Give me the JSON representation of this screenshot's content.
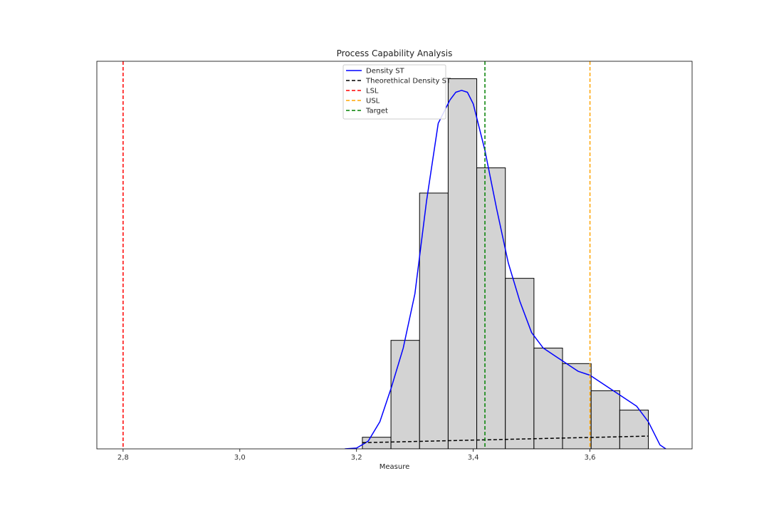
{
  "chart_data": {
    "type": "bar",
    "title": "Process Capability Analysis",
    "xlabel": "Measure",
    "ylabel": "",
    "xlim": [
      2.755,
      3.775
    ],
    "ylim": [
      0,
      1.0
    ],
    "xticks": [
      2.8,
      3.0,
      3.2,
      3.4,
      3.6
    ],
    "xtick_labels": [
      "2,8",
      "3,0",
      "3,2",
      "3,4",
      "3,6"
    ],
    "histogram": {
      "bin_edges": [
        3.21,
        3.259,
        3.308,
        3.357,
        3.406,
        3.455,
        3.504,
        3.553,
        3.602,
        3.651,
        3.7
      ],
      "values": [
        0.03,
        0.28,
        0.66,
        0.955,
        0.725,
        0.44,
        0.26,
        0.22,
        0.15,
        0.1
      ],
      "fill": "#d3d3d3",
      "edge": "#000000"
    },
    "density_st": {
      "name": "Density ST",
      "color": "#0000ff",
      "x": [
        3.18,
        3.2,
        3.22,
        3.24,
        3.26,
        3.28,
        3.3,
        3.32,
        3.34,
        3.36,
        3.37,
        3.38,
        3.39,
        3.4,
        3.42,
        3.44,
        3.46,
        3.48,
        3.5,
        3.52,
        3.54,
        3.56,
        3.58,
        3.6,
        3.62,
        3.64,
        3.66,
        3.68,
        3.7,
        3.72,
        3.73
      ],
      "y": [
        0.0,
        0.002,
        0.02,
        0.07,
        0.16,
        0.26,
        0.4,
        0.64,
        0.84,
        0.9,
        0.92,
        0.925,
        0.92,
        0.89,
        0.77,
        0.62,
        0.48,
        0.38,
        0.3,
        0.26,
        0.24,
        0.22,
        0.2,
        0.19,
        0.17,
        0.15,
        0.13,
        0.11,
        0.07,
        0.01,
        0.0
      ]
    },
    "theoretical_density_st": {
      "name": "Theorethical Density ST",
      "color": "#000000",
      "x": [
        3.21,
        3.7
      ],
      "y": [
        0.016,
        0.033
      ]
    },
    "lines": [
      {
        "name": "LSL",
        "x": 2.8,
        "color": "#ff0000"
      },
      {
        "name": "USL",
        "x": 3.6,
        "color": "#ffa500"
      },
      {
        "name": "Target",
        "x": 3.42,
        "color": "#008000"
      }
    ],
    "legend": [
      "Density ST",
      "Theorethical Density ST",
      "LSL",
      "USL",
      "Target"
    ],
    "legend_position": "top-center"
  }
}
